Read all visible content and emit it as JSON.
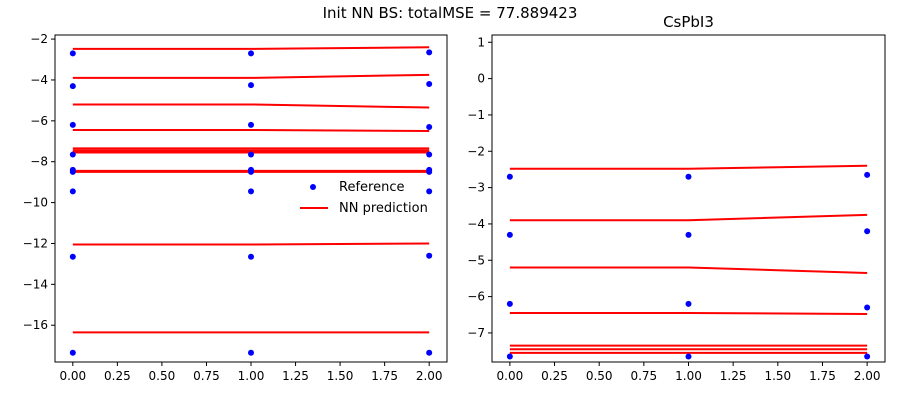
{
  "suptitle": "Init NN BS: totalMSE = 77.889423",
  "chart_data": [
    {
      "type": "scatter",
      "title": "",
      "xlabel": "",
      "ylabel": "",
      "xlim": [
        -0.1,
        2.1
      ],
      "ylim": [
        -17.8,
        -1.8
      ],
      "xticks": [
        0.0,
        0.25,
        0.5,
        0.75,
        1.0,
        1.25,
        1.5,
        1.75,
        2.0
      ],
      "xtick_labels": [
        "0.00",
        "0.25",
        "0.50",
        "0.75",
        "1.00",
        "1.25",
        "1.50",
        "1.75",
        "2.00"
      ],
      "yticks": [
        -16,
        -14,
        -12,
        -10,
        -8,
        -6,
        -4,
        -2
      ],
      "ytick_labels": [
        "−16",
        "−14",
        "−12",
        "−10",
        "−8",
        "−6",
        "−4",
        "−2"
      ],
      "legend": {
        "placement": "center-right",
        "entries": [
          "Reference",
          "NN prediction"
        ]
      },
      "reference_color": "#0000ff",
      "prediction_color": "#ff0000",
      "x": [
        0,
        1,
        2
      ],
      "reference": [
        [
          -17.35,
          -17.35,
          -17.35
        ],
        [
          -12.65,
          -12.65,
          -12.6
        ],
        [
          -9.45,
          -9.45,
          -9.45
        ],
        [
          -8.5,
          -8.5,
          -8.5
        ],
        [
          -8.4,
          -8.4,
          -8.4
        ],
        [
          -7.65,
          -7.65,
          -7.65
        ],
        [
          -6.2,
          -6.2,
          -6.3
        ],
        [
          -4.3,
          -4.25,
          -4.2
        ],
        [
          -2.7,
          -2.7,
          -2.65
        ]
      ],
      "prediction": [
        [
          -16.35,
          -16.35,
          -16.35
        ],
        [
          -12.05,
          -12.05,
          -12.0
        ],
        [
          -8.45,
          -8.45,
          -8.45
        ],
        [
          -8.5,
          -8.5,
          -8.5
        ],
        [
          -7.55,
          -7.55,
          -7.55
        ],
        [
          -7.45,
          -7.45,
          -7.45
        ],
        [
          -7.35,
          -7.35,
          -7.35
        ],
        [
          -6.45,
          -6.45,
          -6.5
        ],
        [
          -5.2,
          -5.2,
          -5.35
        ],
        [
          -3.9,
          -3.9,
          -3.75
        ],
        [
          -2.48,
          -2.48,
          -2.4
        ]
      ]
    },
    {
      "type": "scatter",
      "title": "CsPbI3",
      "xlabel": "",
      "ylabel": "",
      "xlim": [
        -0.1,
        2.1
      ],
      "ylim": [
        -7.8,
        1.2
      ],
      "xticks": [
        0.0,
        0.25,
        0.5,
        0.75,
        1.0,
        1.25,
        1.5,
        1.75,
        2.0
      ],
      "xtick_labels": [
        "0.00",
        "0.25",
        "0.50",
        "0.75",
        "1.00",
        "1.25",
        "1.50",
        "1.75",
        "2.00"
      ],
      "yticks": [
        -7,
        -6,
        -5,
        -4,
        -3,
        -2,
        -1,
        0,
        1
      ],
      "ytick_labels": [
        "−7",
        "−6",
        "−5",
        "−4",
        "−3",
        "−2",
        "−1",
        "0",
        "1"
      ],
      "reference_color": "#0000ff",
      "prediction_color": "#ff0000",
      "x": [
        0,
        1,
        2
      ],
      "reference": [
        [
          -7.65,
          -7.65,
          -7.65
        ],
        [
          -6.2,
          -6.2,
          -6.3
        ],
        [
          -4.3,
          -4.3,
          -4.2
        ],
        [
          -2.7,
          -2.7,
          -2.65
        ]
      ],
      "prediction": [
        [
          -7.55,
          -7.55,
          -7.55
        ],
        [
          -7.45,
          -7.45,
          -7.45
        ],
        [
          -7.35,
          -7.35,
          -7.35
        ],
        [
          -6.45,
          -6.45,
          -6.48
        ],
        [
          -5.2,
          -5.2,
          -5.35
        ],
        [
          -3.9,
          -3.9,
          -3.75
        ],
        [
          -2.48,
          -2.48,
          -2.4
        ]
      ]
    }
  ]
}
